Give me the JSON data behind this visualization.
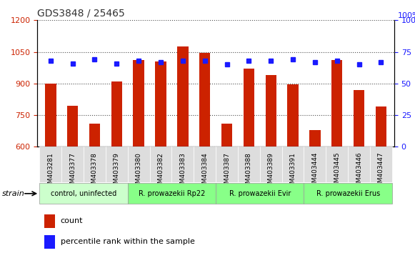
{
  "title": "GDS3848 / 25465",
  "samples": [
    "GSM403281",
    "GSM403377",
    "GSM403378",
    "GSM403379",
    "GSM403380",
    "GSM403382",
    "GSM403383",
    "GSM403384",
    "GSM403387",
    "GSM403388",
    "GSM403389",
    "GSM403391",
    "GSM403444",
    "GSM403445",
    "GSM403446",
    "GSM403447"
  ],
  "counts": [
    900,
    795,
    710,
    910,
    1010,
    1005,
    1075,
    1045,
    710,
    970,
    940,
    895,
    680,
    1010,
    870,
    790
  ],
  "percentiles": [
    68,
    66,
    69,
    66,
    68,
    67,
    68,
    68,
    65,
    68,
    68,
    69,
    67,
    68,
    65,
    67
  ],
  "ylim_left": [
    600,
    1200
  ],
  "ylim_right": [
    0,
    100
  ],
  "yticks_left": [
    600,
    750,
    900,
    1050,
    1200
  ],
  "yticks_right": [
    0,
    25,
    50,
    75,
    100
  ],
  "bar_color": "#cc2200",
  "dot_color": "#1a1aff",
  "bg_color": "#ffffff",
  "tick_color_left": "#cc2200",
  "tick_color_right": "#1a1aff",
  "groups": [
    {
      "label": "control, uninfected",
      "indices": [
        0,
        1,
        2,
        3
      ],
      "color": "#ccffcc"
    },
    {
      "label": "R. prowazekii Rp22",
      "indices": [
        4,
        5,
        6,
        7
      ],
      "color": "#88ff88"
    },
    {
      "label": "R. prowazekii Evir",
      "indices": [
        8,
        9,
        10,
        11
      ],
      "color": "#88ff88"
    },
    {
      "label": "R. prowazekii Erus",
      "indices": [
        12,
        13,
        14,
        15
      ],
      "color": "#88ff88"
    }
  ],
  "legend_count_label": "count",
  "legend_pct_label": "percentile rank within the sample",
  "grid_color": "#000000",
  "sample_bg": "#dddddd"
}
